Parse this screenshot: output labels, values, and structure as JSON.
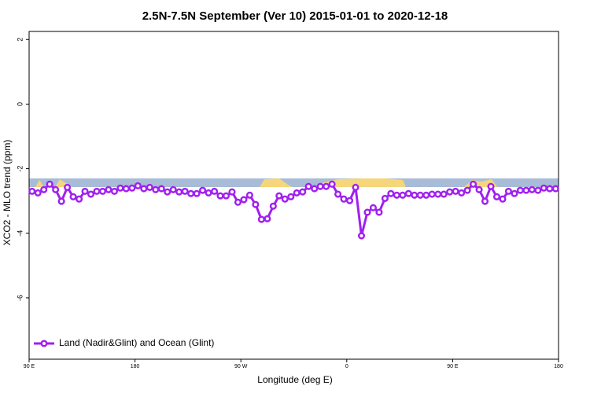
{
  "chart_data": {
    "type": "line",
    "title": "2.5N-7.5N September (Ver 10)   2015-01-01 to 2020-12-18",
    "x_label": "Longitude (deg E)",
    "y_label": "XCO2 - MLO trend (ppm)",
    "xlim": [
      90,
      540
    ],
    "ylim": [
      -7.9,
      2.25
    ],
    "xticks": [
      {
        "value": 90,
        "label": "90 E"
      },
      180,
      {
        "value": 270,
        "label": "90 W"
      },
      {
        "value": 360,
        "label": "0"
      },
      {
        "value": 450,
        "label": "90 E"
      },
      {
        "value": 540,
        "label": "180"
      }
    ],
    "yticks": [
      2,
      0,
      -2,
      -4,
      -6
    ],
    "legend_position": "bottom-left",
    "x": [
      92.5,
      97.5,
      102.5,
      107.5,
      112.5,
      117.5,
      122.5,
      127.5,
      132.5,
      137.5,
      142.5,
      147.5,
      152.5,
      157.5,
      162.5,
      167.5,
      172.5,
      177.5,
      182.5,
      187.5,
      192.5,
      197.5,
      202.5,
      207.5,
      212.5,
      217.5,
      222.5,
      227.5,
      232.5,
      237.5,
      242.5,
      247.5,
      252.5,
      257.5,
      262.5,
      267.5,
      272.5,
      277.5,
      282.5,
      287.5,
      292.5,
      297.5,
      302.5,
      307.5,
      312.5,
      317.5,
      322.5,
      327.5,
      332.5,
      337.5,
      342.5,
      347.5,
      352.5,
      357.5,
      362.5,
      367.5,
      372.5,
      377.5,
      382.5,
      387.5,
      392.5,
      397.5,
      402.5,
      407.5,
      412.5,
      417.5,
      422.5,
      427.5,
      432.5,
      437.5,
      442.5,
      447.5,
      452.5,
      457.5,
      462.5,
      467.5,
      472.5,
      477.5,
      482.5,
      487.5,
      492.5,
      497.5,
      502.5,
      507.5,
      512.5,
      517.5,
      522.5,
      527.5,
      532.5,
      537.5
    ],
    "series": [
      {
        "name": "Land (Nadir&Glint) and Ocean (Glint)",
        "color": "#a020f0",
        "values": [
          -2.7,
          -2.75,
          -2.65,
          -2.48,
          -2.65,
          -3.01,
          -2.58,
          -2.87,
          -2.94,
          -2.7,
          -2.79,
          -2.7,
          -2.7,
          -2.65,
          -2.7,
          -2.6,
          -2.62,
          -2.6,
          -2.53,
          -2.62,
          -2.58,
          -2.65,
          -2.62,
          -2.72,
          -2.65,
          -2.72,
          -2.7,
          -2.77,
          -2.77,
          -2.67,
          -2.75,
          -2.7,
          -2.84,
          -2.84,
          -2.72,
          -3.04,
          -2.96,
          -2.82,
          -3.11,
          -3.57,
          -3.55,
          -3.16,
          -2.84,
          -2.94,
          -2.87,
          -2.75,
          -2.72,
          -2.55,
          -2.62,
          -2.55,
          -2.55,
          -2.48,
          -2.79,
          -2.94,
          -2.99,
          -2.58,
          -4.08,
          -3.35,
          -3.21,
          -3.35,
          -2.92,
          -2.77,
          -2.82,
          -2.82,
          -2.77,
          -2.82,
          -2.82,
          -2.82,
          -2.79,
          -2.79,
          -2.79,
          -2.72,
          -2.7,
          -2.75,
          -2.67,
          -2.48,
          -2.65,
          -3.01,
          -2.55,
          -2.87,
          -2.94,
          -2.7,
          -2.77,
          -2.67,
          -2.67,
          -2.65,
          -2.67,
          -2.6,
          -2.62,
          -2.62
        ]
      }
    ]
  }
}
